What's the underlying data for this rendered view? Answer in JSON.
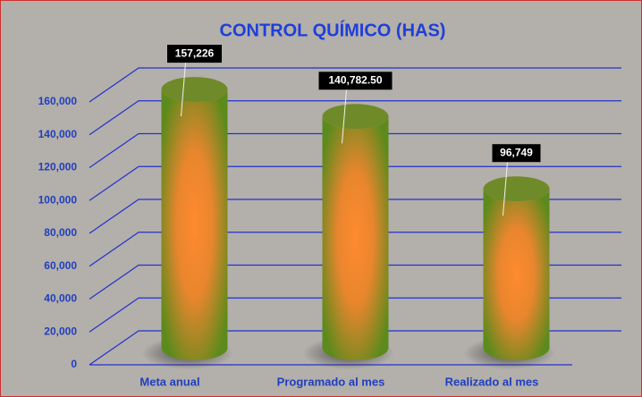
{
  "chart_data": {
    "type": "cylinder",
    "title": "CONTROL QUÍMICO (HAS)",
    "categories": [
      "Meta anual",
      "Programado al mes",
      "Realizado al mes"
    ],
    "values": [
      157226,
      140782.5,
      96749
    ],
    "value_labels": [
      "157,226",
      "140,782.50",
      "96,749"
    ],
    "color": "#ff8a2e",
    "ylim": [
      0,
      160000
    ],
    "yticks": [
      0,
      {
        "value": 20000,
        "label": "20,000"
      },
      {
        "value": 40000,
        "label": "40,000"
      },
      {
        "value": 60000,
        "label": "60,000"
      },
      {
        "value": 80000,
        "label": "80,000"
      },
      {
        "value": 100000,
        "label": "100,000"
      },
      {
        "value": 120000,
        "label": "120,000"
      },
      {
        "value": 140000,
        "label": "140,000"
      },
      {
        "value": 160000,
        "label": "160,000"
      }
    ],
    "grid": true
  }
}
